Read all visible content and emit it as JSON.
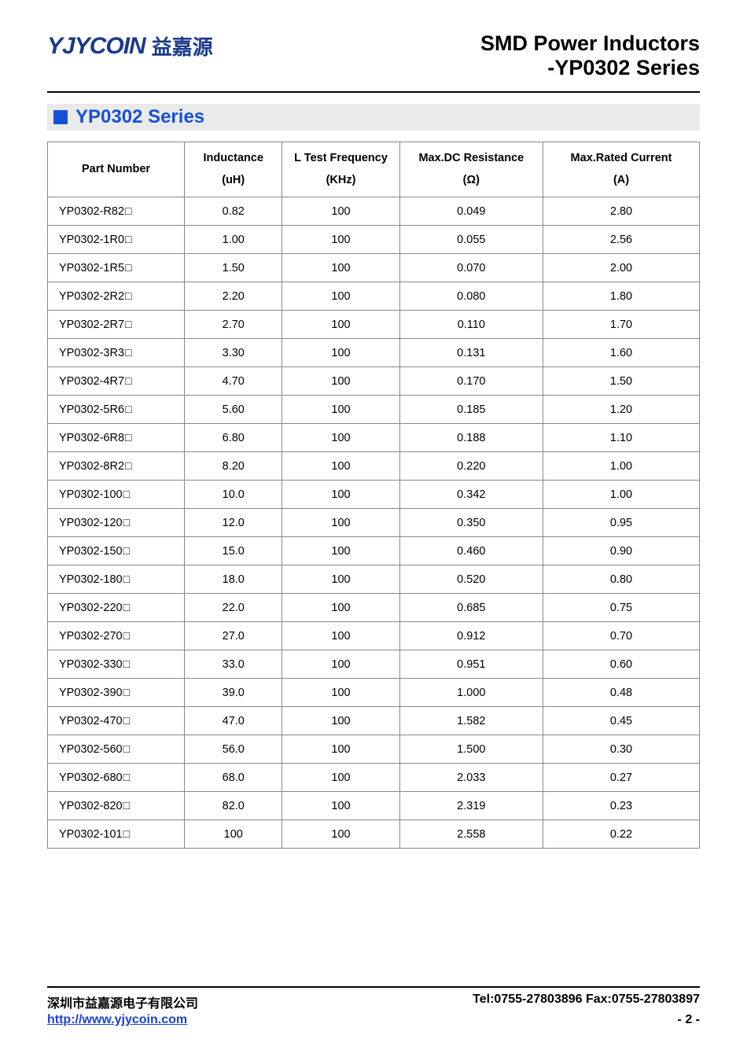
{
  "header": {
    "logo_en": "YJYCOIN",
    "logo_cn": "益嘉源",
    "title_line1": "SMD Power Inductors",
    "title_line2": "-YP0302 Series"
  },
  "section": {
    "title": "YP0302 Series",
    "bar_bg": "#eaeaea",
    "square_color": "#1750d6",
    "title_color": "#1750d6"
  },
  "table": {
    "columns": [
      {
        "label": "Part Number",
        "unit": ""
      },
      {
        "label": "Inductance",
        "unit": "(uH)"
      },
      {
        "label": "L Test Frequency",
        "unit": "(KHz)"
      },
      {
        "label": "Max.DC Resistance",
        "unit": "(Ω)"
      },
      {
        "label": "Max.Rated Current",
        "unit": "(A)"
      }
    ],
    "part_suffix": "□",
    "rows": [
      {
        "part": "YP0302-R82",
        "ind": "0.82",
        "freq": "100",
        "dcr": "0.049",
        "cur": "2.80"
      },
      {
        "part": "YP0302-1R0",
        "ind": "1.00",
        "freq": "100",
        "dcr": "0.055",
        "cur": "2.56"
      },
      {
        "part": "YP0302-1R5",
        "ind": "1.50",
        "freq": "100",
        "dcr": "0.070",
        "cur": "2.00"
      },
      {
        "part": "YP0302-2R2",
        "ind": "2.20",
        "freq": "100",
        "dcr": "0.080",
        "cur": "1.80"
      },
      {
        "part": "YP0302-2R7",
        "ind": "2.70",
        "freq": "100",
        "dcr": "0.110",
        "cur": "1.70"
      },
      {
        "part": "YP0302-3R3",
        "ind": "3.30",
        "freq": "100",
        "dcr": "0.131",
        "cur": "1.60"
      },
      {
        "part": "YP0302-4R7",
        "ind": "4.70",
        "freq": "100",
        "dcr": "0.170",
        "cur": "1.50"
      },
      {
        "part": "YP0302-5R6",
        "ind": "5.60",
        "freq": "100",
        "dcr": "0.185",
        "cur": "1.20"
      },
      {
        "part": "YP0302-6R8",
        "ind": "6.80",
        "freq": "100",
        "dcr": "0.188",
        "cur": "1.10"
      },
      {
        "part": "YP0302-8R2",
        "ind": "8.20",
        "freq": "100",
        "dcr": "0.220",
        "cur": "1.00"
      },
      {
        "part": "YP0302-100",
        "ind": "10.0",
        "freq": "100",
        "dcr": "0.342",
        "cur": "1.00"
      },
      {
        "part": "YP0302-120",
        "ind": "12.0",
        "freq": "100",
        "dcr": "0.350",
        "cur": "0.95"
      },
      {
        "part": "YP0302-150",
        "ind": "15.0",
        "freq": "100",
        "dcr": "0.460",
        "cur": "0.90"
      },
      {
        "part": "YP0302-180",
        "ind": "18.0",
        "freq": "100",
        "dcr": "0.520",
        "cur": "0.80"
      },
      {
        "part": "YP0302-220",
        "ind": "22.0",
        "freq": "100",
        "dcr": "0.685",
        "cur": "0.75"
      },
      {
        "part": "YP0302-270",
        "ind": "27.0",
        "freq": "100",
        "dcr": "0.912",
        "cur": "0.70"
      },
      {
        "part": "YP0302-330",
        "ind": "33.0",
        "freq": "100",
        "dcr": "0.951",
        "cur": "0.60"
      },
      {
        "part": "YP0302-390",
        "ind": "39.0",
        "freq": "100",
        "dcr": "1.000",
        "cur": "0.48"
      },
      {
        "part": "YP0302-470",
        "ind": "47.0",
        "freq": "100",
        "dcr": "1.582",
        "cur": "0.45"
      },
      {
        "part": "YP0302-560",
        "ind": "56.0",
        "freq": "100",
        "dcr": "1.500",
        "cur": "0.30"
      },
      {
        "part": "YP0302-680",
        "ind": "68.0",
        "freq": "100",
        "dcr": "2.033",
        "cur": "0.27"
      },
      {
        "part": "YP0302-820",
        "ind": "82.0",
        "freq": "100",
        "dcr": "2.319",
        "cur": "0.23"
      },
      {
        "part": "YP0302-101",
        "ind": "100",
        "freq": "100",
        "dcr": "2.558",
        "cur": "0.22"
      }
    ]
  },
  "footer": {
    "company_cn": "深圳市益嘉源电子有限公司",
    "contact": "Tel:0755-27803896   Fax:0755-27803897",
    "url": "http://www.yjycoin.com",
    "page": "- 2 -"
  },
  "colors": {
    "brand_blue": "#1a3a8a",
    "accent_blue": "#1750d6",
    "link_blue": "#1a3fd6",
    "text": "#000000",
    "border": "#888888",
    "background": "#ffffff"
  }
}
